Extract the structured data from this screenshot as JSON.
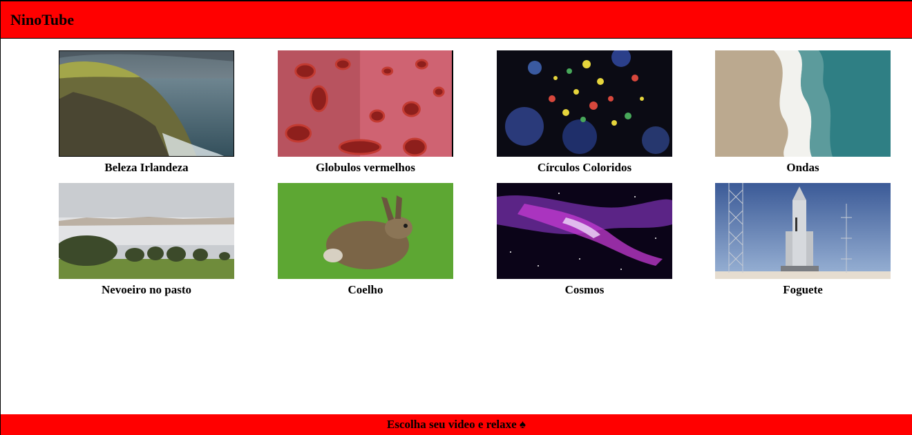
{
  "app": {
    "title": "NinoTube"
  },
  "videos": [
    {
      "title": "Beleza Irlandeza",
      "thumbnail": "irish-cliff-coast"
    },
    {
      "title": "Globulos vermelhos",
      "thumbnail": "red-blood-cells"
    },
    {
      "title": "Círculos Coloridos",
      "thumbnail": "colorful-circles"
    },
    {
      "title": "Ondas",
      "thumbnail": "beach-waves"
    },
    {
      "title": "Nevoeiro no pasto",
      "thumbnail": "foggy-pasture"
    },
    {
      "title": "Coelho",
      "thumbnail": "hare-on-grass"
    },
    {
      "title": "Cosmos",
      "thumbnail": "space-nebula"
    },
    {
      "title": "Foguete",
      "thumbnail": "rocket-on-launchpad"
    }
  ],
  "footer": {
    "text": "Escolha seu video e relaxe ♠"
  },
  "colors": {
    "header": "#ff0000",
    "footer": "#ff0000",
    "background": "#ffffff"
  }
}
